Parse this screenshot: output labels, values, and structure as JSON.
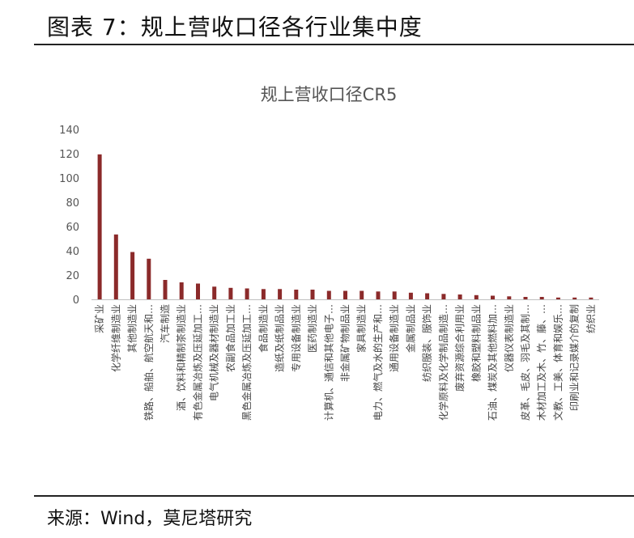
{
  "header": {
    "title": "图表 7：规上营收口径各行业集中度"
  },
  "source": {
    "text": "来源：Wind，莫尼塔研究"
  },
  "chart_data": {
    "type": "bar",
    "title": "规上营收口径CR5",
    "xlabel": "",
    "ylabel": "",
    "ylim": [
      0,
      140
    ],
    "yticks": [
      0,
      20,
      40,
      60,
      80,
      100,
      120,
      140
    ],
    "grid": false,
    "legend": "none",
    "bar_color": "#8B2A2A",
    "categories": [
      "采矿业",
      "化学纤维制造业",
      "其他制造业",
      "铁路、船舶、航空航天和…",
      "汽车制造",
      "酒、饮料和精制茶制造业",
      "有色金属冶炼及压延加工…",
      "电气机械及器材制造业",
      "农副食品加工业",
      "黑色金属冶炼及压延加工…",
      "食品制造业",
      "造纸及纸制品业",
      "专用设备制造业",
      "医药制造业",
      "计算机、通信和其他电子…",
      "非金属矿物制品业",
      "家具制造业",
      "电力、燃气及水的生产和…",
      "通用设备制造业",
      "金属制品业",
      "纺织服装、服饰业",
      "化学原料及化学制品制造…",
      "废弃资源综合利用业",
      "橡胶和塑料制品业",
      "石油、煤炭及其他燃料加…",
      "仪器仪表制造业",
      "皮革、毛皮、羽毛及其制…",
      "木材加工及木、竹、藤、…",
      "文教、工美、体育和娱乐…",
      "印刷业和记录媒介的复制",
      "纺织业"
    ],
    "values": [
      119.5,
      53.5,
      39,
      33.5,
      16,
      14,
      13,
      10.5,
      9.5,
      9,
      8.5,
      8.5,
      8,
      8,
      7,
      7,
      7,
      6.5,
      6.5,
      5.5,
      5,
      4.5,
      4,
      3.5,
      3,
      2.5,
      2,
      2,
      1.5,
      1.5,
      1.5
    ]
  }
}
